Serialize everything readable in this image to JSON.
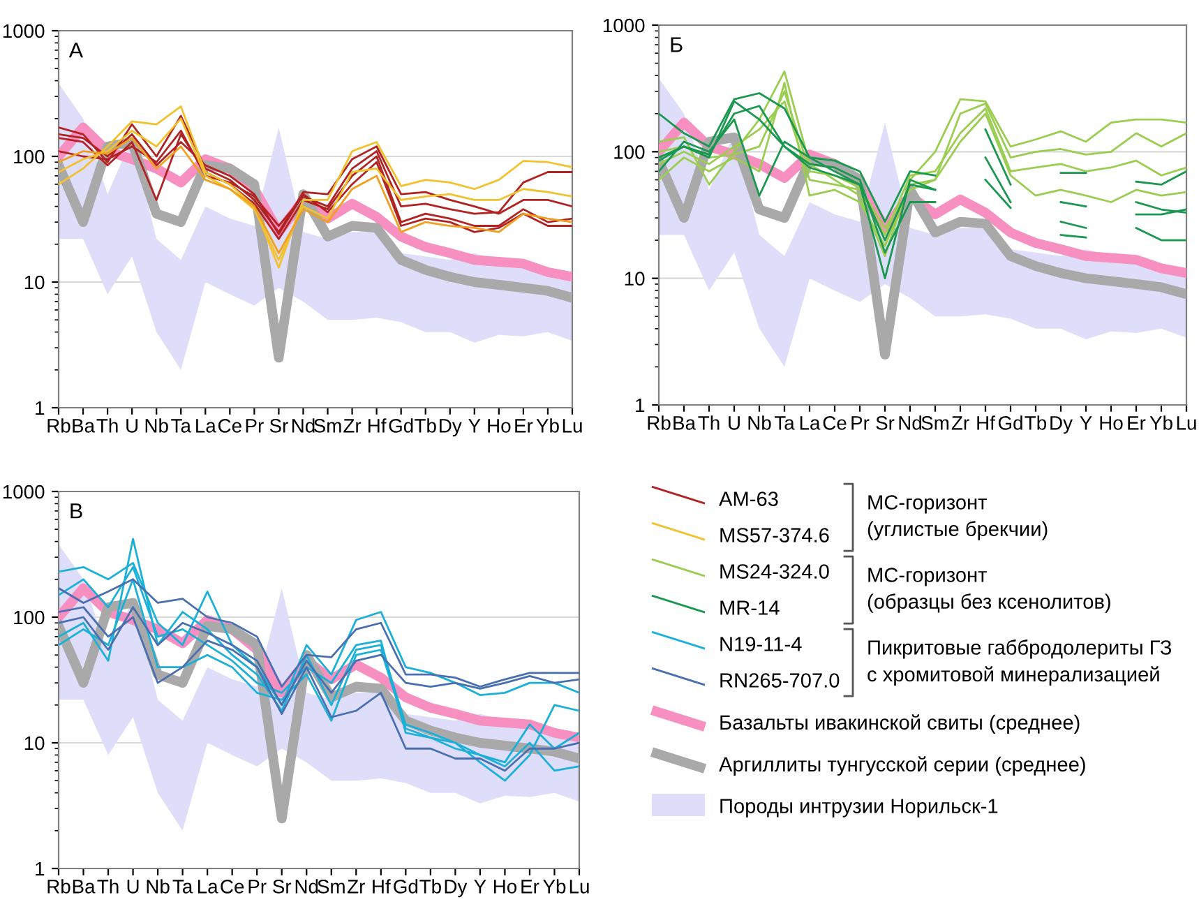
{
  "chart_data": [
    {
      "type": "line",
      "title": "А",
      "categories": [
        "Rb",
        "Ba",
        "Th",
        "U",
        "Nb",
        "Ta",
        "La",
        "Ce",
        "Pr",
        "Sr",
        "Nd",
        "Sm",
        "Zr",
        "Hf",
        "Gd",
        "Tb",
        "Dy",
        "Y",
        "Ho",
        "Er",
        "Yb",
        "Lu"
      ],
      "log": "y",
      "ylim": [
        1,
        1000
      ],
      "yticks": [
        1,
        10,
        100,
        1000
      ],
      "grid": "y",
      "marker": "none",
      "line_style": "solid",
      "legend": "bottom right",
      "series": [
        {
          "name": "Базальты ивакинской свиты (среднее)",
          "color": "#f790c0",
          "values": [
            100,
            170,
            110,
            95,
            80,
            62,
            95,
            80,
            55,
            25,
            45,
            32,
            42,
            33,
            23,
            19,
            17,
            15,
            14.5,
            14,
            12,
            11
          ]
        },
        {
          "name": "Аргиллиты тунгусской серии (среднее)",
          "color": "#a9a9a9",
          "values": [
            85,
            30,
            120,
            130,
            35,
            30,
            85,
            80,
            60,
            2.5,
            50,
            23,
            28,
            27,
            15,
            12.5,
            11,
            10,
            9.5,
            9,
            8.5,
            7.5
          ]
        },
        {
          "name": "AM-63",
          "color": "#b22222",
          "values": [
            170,
            150,
            90,
            180,
            100,
            210,
            80,
            65,
            45,
            25,
            52,
            50,
            95,
            120,
            50,
            52,
            45,
            40,
            35,
            45,
            45,
            40
          ]
        },
        {
          "color": "#b22222",
          "values": [
            140,
            130,
            85,
            130,
            45,
            150,
            75,
            60,
            42,
            22,
            45,
            38,
            70,
            100,
            30,
            35,
            32,
            28,
            28,
            38,
            30,
            32
          ]
        },
        {
          "color": "#b22222",
          "values": [
            110,
            100,
            95,
            120,
            90,
            160,
            70,
            62,
            48,
            28,
            48,
            40,
            80,
            110,
            40,
            42,
            38,
            35,
            36,
            62,
            75,
            75
          ]
        },
        {
          "color": "#b22222",
          "values": [
            150,
            140,
            100,
            150,
            85,
            130,
            85,
            70,
            50,
            24,
            50,
            36,
            60,
            90,
            28,
            32,
            30,
            25,
            27,
            35,
            28,
            28
          ]
        },
        {
          "name": "MS57-374.6",
          "color": "#f2c12e",
          "values": [
            60,
            80,
            120,
            190,
            180,
            250,
            75,
            60,
            40,
            13,
            45,
            45,
            110,
            130,
            58,
            65,
            62,
            55,
            65,
            92,
            90,
            82
          ]
        },
        {
          "color": "#f2c12e",
          "values": [
            75,
            95,
            110,
            160,
            120,
            200,
            70,
            55,
            38,
            15,
            40,
            32,
            75,
            80,
            45,
            48,
            50,
            45,
            45,
            55,
            52,
            48
          ]
        },
        {
          "color": "#f0a020",
          "values": [
            90,
            110,
            105,
            140,
            80,
            120,
            65,
            55,
            40,
            17,
            38,
            30,
            55,
            70,
            25,
            30,
            28,
            27,
            25,
            35,
            32,
            30
          ]
        },
        {
          "type": "area",
          "name": "Породы интрузии Норильск-1",
          "color": "#dedefa",
          "values": [
            null,
            null,
            null,
            null,
            null,
            null,
            null,
            null,
            null,
            null,
            null,
            null,
            null,
            null,
            null,
            null,
            null,
            null,
            null,
            null,
            null,
            null
          ],
          "lower": [
            22,
            22,
            8,
            16,
            4,
            2,
            10,
            8,
            6.5,
            9,
            7,
            5,
            5,
            5.2,
            4.8,
            4,
            4,
            3.3,
            3.8,
            3.7,
            4,
            3.4
          ],
          "upper": [
            380,
            200,
            50,
            140,
            22,
            15,
            40,
            32,
            28,
            170,
            25,
            22,
            25,
            25,
            17,
            16,
            15,
            17,
            15,
            14,
            13,
            12
          ]
        }
      ]
    },
    {
      "type": "line",
      "title": "Б",
      "categories": [
        "Rb",
        "Ba",
        "Th",
        "U",
        "Nb",
        "Ta",
        "La",
        "Ce",
        "Pr",
        "Sr",
        "Nd",
        "Sm",
        "Zr",
        "Hf",
        "Gd",
        "Tb",
        "Dy",
        "Y",
        "Ho",
        "Er",
        "Yb",
        "Lu"
      ],
      "log": "y",
      "ylim": [
        1,
        1000
      ],
      "yticks": [
        1,
        10,
        100,
        1000
      ],
      "grid": "y",
      "marker": "none",
      "line_style": "solid",
      "legend": "bottom",
      "series": [
        {
          "color": "#f790c0",
          "values": [
            100,
            170,
            110,
            95,
            80,
            62,
            95,
            80,
            55,
            25,
            45,
            32,
            42,
            33,
            23,
            19,
            17,
            15,
            14.5,
            14,
            12,
            11
          ]
        },
        {
          "name": "Аргиллиты тунгусской серии (среднее)",
          "color": "#a9a9a9",
          "values": [
            85,
            30,
            120,
            130,
            35,
            30,
            85,
            80,
            60,
            2.5,
            50,
            23,
            28,
            27,
            15,
            12.5,
            11,
            10,
            9.5,
            9,
            8.5,
            7.5
          ]
        },
        {
          "name": "MS24-324.0",
          "color": "#9acd50",
          "values": [
            120,
            130,
            55,
            100,
            180,
            430,
            80,
            60,
            45,
            15,
            60,
            100,
            260,
            250,
            110,
            125,
            145,
            120,
            170,
            180,
            180,
            170
          ]
        },
        {
          "color": "#9acd50",
          "values": [
            60,
            90,
            70,
            90,
            70,
            350,
            45,
            50,
            40,
            18,
            55,
            60,
            200,
            240,
            90,
            100,
            105,
            95,
            100,
            140,
            110,
            140
          ]
        },
        {
          "color": "#9acd50",
          "values": [
            80,
            100,
            80,
            110,
            150,
            250,
            60,
            55,
            50,
            22,
            65,
            70,
            140,
            220,
            70,
            75,
            80,
            70,
            75,
            85,
            65,
            75
          ]
        },
        {
          "color": "#9acd50",
          "values": [
            100,
            110,
            90,
            95,
            110,
            300,
            70,
            65,
            52,
            25,
            50,
            60,
            120,
            200,
            65,
            45,
            50,
            45,
            40,
            50,
            45,
            48
          ]
        },
        {
          "name": "MR-14",
          "color": "#1a9850",
          "values": [
            200,
            140,
            110,
            260,
            290,
            220,
            90,
            85,
            70,
            28,
            70,
            65,
            null,
            150,
            55,
            null,
            68,
            68,
            null,
            58,
            55,
            70
          ]
        },
        {
          "color": "#1a9850",
          "values": [
            70,
            120,
            100,
            180,
            45,
            120,
            90,
            70,
            55,
            10,
            60,
            50,
            null,
            90,
            40,
            null,
            40,
            37,
            null,
            40,
            35,
            33
          ]
        },
        {
          "color": "#1a9850",
          "values": [
            90,
            110,
            95,
            200,
            230,
            110,
            80,
            75,
            60,
            16,
            40,
            40,
            null,
            60,
            36,
            null,
            28,
            25,
            null,
            25,
            20,
            20
          ]
        },
        {
          "color": "#1a9850",
          "values": [
            85,
            110,
            90,
            250,
            180,
            110,
            75,
            65,
            55,
            20,
            55,
            50,
            null,
            null,
            null,
            null,
            22,
            21,
            null,
            32,
            32,
            35
          ]
        },
        {
          "type": "area",
          "values": [
            null,
            null,
            null,
            null,
            null,
            null,
            null,
            null,
            null,
            null,
            null,
            null,
            null,
            null,
            null,
            null,
            null,
            null,
            null,
            null,
            null,
            null
          ],
          "color": "#dedefa",
          "lower": [
            22,
            22,
            8,
            16,
            4,
            2,
            10,
            8,
            6.5,
            9,
            7,
            5,
            5,
            5.2,
            4.8,
            4,
            4,
            3.3,
            3.8,
            3.7,
            4,
            3.4
          ],
          "upper": [
            380,
            200,
            50,
            140,
            22,
            15,
            40,
            32,
            28,
            170,
            25,
            22,
            25,
            25,
            17,
            16,
            15,
            17,
            15,
            14,
            13,
            12
          ]
        }
      ]
    },
    {
      "type": "line",
      "title": "В",
      "categories": [
        "Rb",
        "Ba",
        "Th",
        "U",
        "Nb",
        "Ta",
        "La",
        "Ce",
        "Pr",
        "Sr",
        "Nd",
        "Sm",
        "Zr",
        "Hf",
        "Gd",
        "Tb",
        "Dy",
        "Y",
        "Ho",
        "Er",
        "Yb",
        "Lu"
      ],
      "log": "y",
      "ylim": [
        1,
        1000
      ],
      "yticks": [
        1,
        10,
        100,
        1000
      ],
      "grid": "y",
      "marker": "none",
      "line_style": "solid",
      "legend": "right",
      "annotations": [
        "МС-горизонт\n(углистые брекчии)",
        "МС-горизонт\n(образцы без ксенолитов)",
        "Пикритовые габбродолериты ГЗ\nс хромитовой минерализацией"
      ],
      "series": [
        {
          "name": "Базальты ивакинской свиты (среднее)",
          "color": "#f790c0",
          "values": [
            100,
            170,
            110,
            95,
            80,
            62,
            95,
            80,
            55,
            25,
            45,
            32,
            42,
            33,
            23,
            19,
            17,
            15,
            14.5,
            14,
            12,
            11
          ]
        },
        {
          "name": "Аргиллиты тунгусской серии (среднее)",
          "color": "#a9a9a9",
          "values": [
            85,
            30,
            120,
            130,
            35,
            30,
            85,
            80,
            60,
            2.5,
            50,
            23,
            28,
            27,
            15,
            12.5,
            11,
            10,
            9.5,
            9,
            8.5,
            7.5
          ]
        },
        {
          "name": "N19-11-4",
          "color": "#1ab0d8",
          "values": [
            230,
            250,
            200,
            270,
            90,
            60,
            160,
            60,
            40,
            20,
            60,
            35,
            95,
            110,
            40,
            36,
            30,
            24,
            25,
            30,
            30,
            25
          ]
        },
        {
          "color": "#1ab0d8",
          "values": [
            70,
            90,
            45,
            420,
            60,
            110,
            80,
            50,
            35,
            18,
            50,
            20,
            55,
            60,
            14,
            12,
            10,
            7,
            5,
            8,
            20,
            18
          ]
        },
        {
          "color": "#1ab0d8",
          "values": [
            150,
            200,
            120,
            250,
            70,
            80,
            60,
            45,
            30,
            25,
            40,
            30,
            60,
            65,
            12,
            11,
            10,
            8,
            7,
            14,
            9,
            12
          ]
        },
        {
          "color": "#1ab0d8",
          "values": [
            60,
            80,
            60,
            200,
            40,
            40,
            50,
            40,
            25,
            22,
            35,
            15,
            50,
            55,
            13,
            11,
            9,
            8,
            6.5,
            10,
            6,
            6.5
          ]
        },
        {
          "name": "RN265-707.0",
          "color": "#4a6fb0",
          "values": [
            170,
            130,
            160,
            200,
            130,
            140,
            100,
            90,
            70,
            28,
            50,
            48,
            80,
            90,
            35,
            35,
            33,
            28,
            32,
            36,
            36,
            36
          ]
        },
        {
          "color": "#4a6fb0",
          "values": [
            110,
            120,
            70,
            100,
            30,
            40,
            65,
            55,
            40,
            17,
            40,
            16,
            18,
            25,
            9,
            9,
            7.5,
            7.5,
            6,
            9,
            9,
            10
          ]
        },
        {
          "color": "#4a6fb0",
          "values": [
            90,
            100,
            55,
            120,
            60,
            90,
            75,
            60,
            45,
            20,
            45,
            25,
            45,
            50,
            30,
            28,
            30,
            27,
            30,
            34,
            30,
            32
          ]
        },
        {
          "type": "area",
          "values": [
            null,
            null,
            null,
            null,
            null,
            null,
            null,
            null,
            null,
            null,
            null,
            null,
            null,
            null,
            null,
            null,
            null,
            null,
            null,
            null,
            null,
            null
          ],
          "color": "#dedefa",
          "lower": [
            22,
            22,
            8,
            16,
            4,
            2,
            10,
            8,
            6.5,
            9,
            7,
            5,
            5,
            5.2,
            4.8,
            4,
            4,
            3.3,
            3.8,
            3.7,
            4,
            3.4
          ],
          "upper": [
            380,
            200,
            50,
            140,
            22,
            15,
            40,
            32,
            28,
            170,
            25,
            22,
            25,
            25,
            17,
            16,
            15,
            17,
            15,
            14,
            13,
            12
          ]
        }
      ]
    }
  ]
}
